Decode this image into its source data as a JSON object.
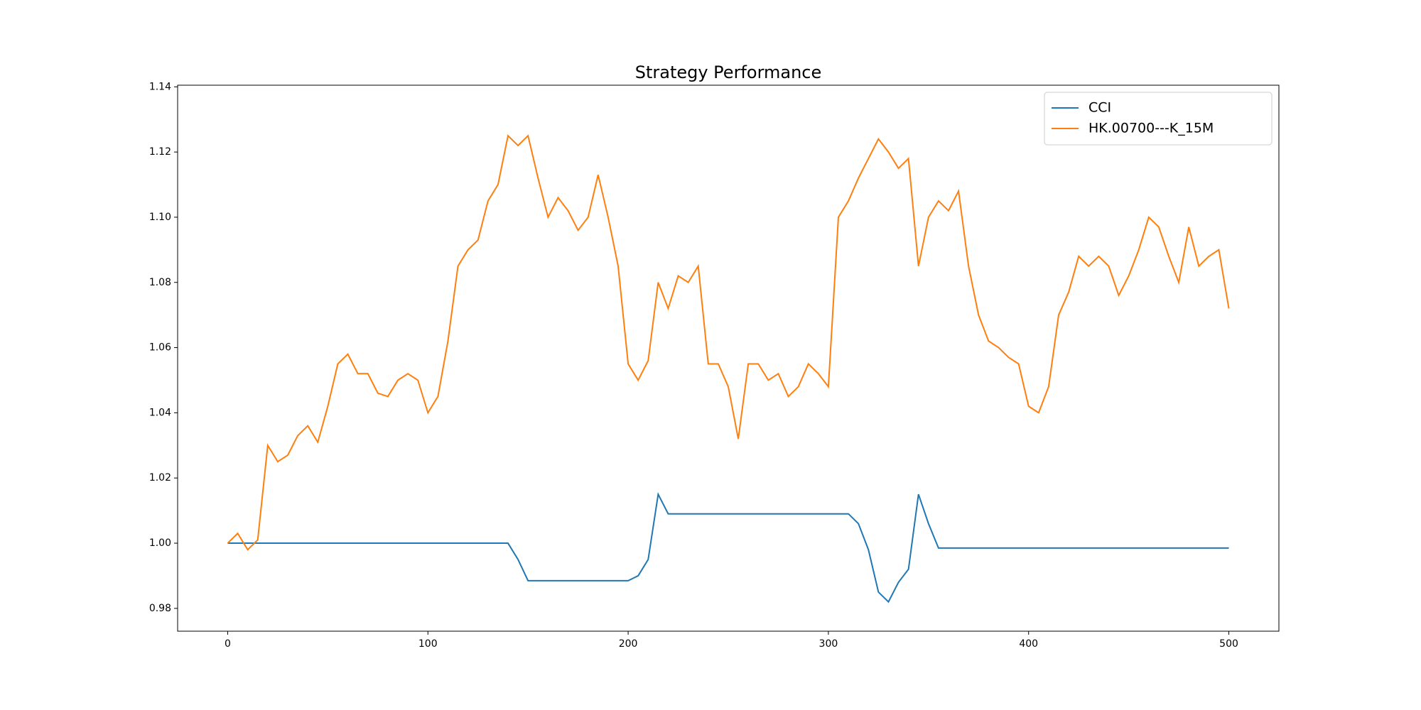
{
  "chart_data": {
    "type": "line",
    "title": "Strategy Performance",
    "x": [
      0,
      5,
      10,
      15,
      20,
      25,
      30,
      35,
      40,
      45,
      50,
      55,
      60,
      65,
      70,
      75,
      80,
      85,
      90,
      95,
      100,
      105,
      110,
      115,
      120,
      125,
      130,
      135,
      140,
      145,
      150,
      155,
      160,
      165,
      170,
      175,
      180,
      185,
      190,
      195,
      200,
      205,
      210,
      215,
      220,
      225,
      230,
      235,
      240,
      245,
      250,
      255,
      260,
      265,
      270,
      275,
      280,
      285,
      290,
      295,
      300,
      305,
      310,
      315,
      320,
      325,
      330,
      335,
      340,
      345,
      350,
      355,
      360,
      365,
      370,
      375,
      380,
      385,
      390,
      395,
      400,
      405,
      410,
      415,
      420,
      425,
      430,
      435,
      440,
      445,
      450,
      455,
      460,
      465,
      470,
      475,
      480,
      485,
      490,
      495,
      500
    ],
    "series": [
      {
        "name": "CCI",
        "color": "#1f77b4",
        "values": [
          1,
          1,
          1,
          1,
          1,
          1,
          1,
          1,
          1,
          1,
          1,
          1,
          1,
          1,
          1,
          1,
          1,
          1,
          1,
          1,
          1,
          1,
          1,
          1,
          1,
          1,
          1,
          1,
          1,
          0.995,
          0.9885,
          0.9885,
          0.9885,
          0.9885,
          0.9885,
          0.9885,
          0.9885,
          0.9885,
          0.9885,
          0.9885,
          0.9885,
          0.99,
          0.995,
          1.015,
          1.009,
          1.009,
          1.009,
          1.009,
          1.009,
          1.009,
          1.009,
          1.009,
          1.009,
          1.009,
          1.009,
          1.009,
          1.009,
          1.009,
          1.009,
          1.009,
          1.009,
          1.009,
          1.009,
          1.006,
          0.998,
          0.985,
          0.982,
          0.988,
          0.992,
          1.015,
          1.006,
          0.9985,
          0.9985,
          0.9985,
          0.9985,
          0.9985,
          0.9985,
          0.9985,
          0.9985,
          0.9985,
          0.9985,
          0.9985,
          0.9985,
          0.9985,
          0.9985,
          0.9985,
          0.9985,
          0.9985,
          0.9985,
          0.9985,
          0.9985,
          0.9985,
          0.9985,
          0.9985,
          0.9985,
          0.9985,
          0.9985,
          0.9985,
          0.9985,
          0.9985,
          0.9985
        ]
      },
      {
        "name": "HK.00700---K_15M",
        "color": "#ff7f0e",
        "values": [
          1,
          1.003,
          0.998,
          1.001,
          1.03,
          1.025,
          1.027,
          1.033,
          1.036,
          1.031,
          1.042,
          1.055,
          1.058,
          1.052,
          1.052,
          1.046,
          1.045,
          1.05,
          1.052,
          1.05,
          1.04,
          1.045,
          1.062,
          1.085,
          1.09,
          1.093,
          1.105,
          1.11,
          1.125,
          1.122,
          1.125,
          1.112,
          1.1,
          1.106,
          1.102,
          1.096,
          1.1,
          1.113,
          1.1,
          1.085,
          1.055,
          1.05,
          1.056,
          1.08,
          1.072,
          1.082,
          1.08,
          1.085,
          1.055,
          1.055,
          1.048,
          1.032,
          1.055,
          1.055,
          1.05,
          1.052,
          1.045,
          1.048,
          1.055,
          1.052,
          1.048,
          1.1,
          1.105,
          1.112,
          1.118,
          1.124,
          1.12,
          1.115,
          1.118,
          1.085,
          1.1,
          1.105,
          1.102,
          1.108,
          1.085,
          1.07,
          1.062,
          1.06,
          1.057,
          1.055,
          1.042,
          1.04,
          1.048,
          1.07,
          1.077,
          1.088,
          1.085,
          1.088,
          1.085,
          1.076,
          1.082,
          1.09,
          1.1,
          1.097,
          1.088,
          1.08,
          1.097,
          1.085,
          1.088,
          1.09,
          1.072
        ]
      }
    ],
    "xlim": [
      -25,
      525
    ],
    "ylim": [
      0.973,
      1.1405
    ],
    "xticks": [
      0,
      100,
      200,
      300,
      400,
      500
    ],
    "yticks": [
      0.98,
      {
        "value": 1,
        "label": "1.00"
      },
      1.02,
      1.04,
      1.06,
      1.08,
      {
        "value": 1.1,
        "label": "1.10"
      },
      1.12,
      1.14
    ],
    "grid": false,
    "legend": "upper right"
  }
}
